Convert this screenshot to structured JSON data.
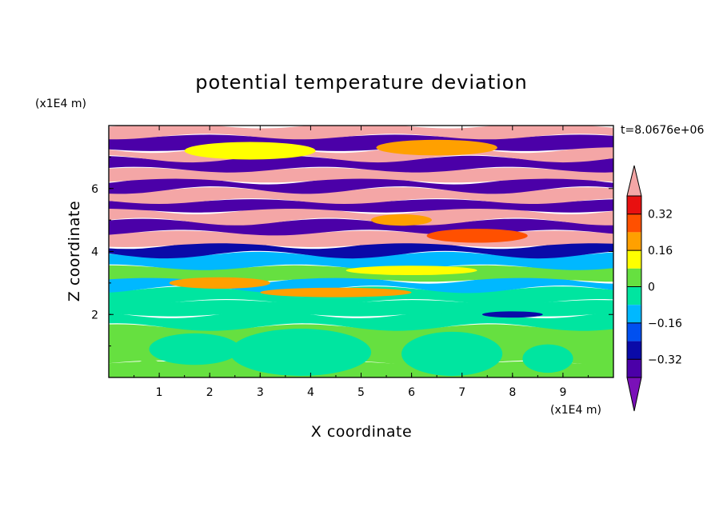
{
  "chart_data": {
    "type": "heatmap",
    "title": "potential temperature deviation",
    "xlabel": "X coordinate",
    "ylabel": "Z coordinate",
    "x_unit": "(x1E4 m)",
    "z_unit": "(x1E4 m)",
    "time_label": "t=8.0676e+06",
    "xlim": [
      0,
      10
    ],
    "ylim": [
      0,
      8
    ],
    "x_ticks": [
      "1",
      "2",
      "3",
      "4",
      "5",
      "6",
      "7",
      "8",
      "9"
    ],
    "y_ticks": [
      "2",
      "4",
      "6"
    ],
    "colorbar": {
      "extend": "both",
      "tick_labels": [
        "0.32",
        "0.16",
        "0",
        "−0.16",
        "−0.32"
      ],
      "levels": [
        -0.4,
        -0.32,
        -0.24,
        -0.16,
        -0.08,
        0,
        0.08,
        0.16,
        0.24,
        0.32,
        0.4
      ],
      "colors": [
        "#7a10b8",
        "#4b00a8",
        "#0a0aa8",
        "#0050f0",
        "#00b8ff",
        "#00e5a0",
        "#66e040",
        "#ffff00",
        "#ffa000",
        "#ff5000",
        "#e81010",
        "#f4a6a6"
      ]
    },
    "field_bands": [
      {
        "z": [
          0.0,
          0.45
        ],
        "value": 0.03
      },
      {
        "z": [
          0.45,
          1.6
        ],
        "value": 0.03
      },
      {
        "z": [
          1.6,
          2.0
        ],
        "value": -0.02
      },
      {
        "z": [
          2.0,
          2.4
        ],
        "value": -0.07
      },
      {
        "z": [
          2.4,
          2.8
        ],
        "value": -0.03
      },
      {
        "z": [
          2.8,
          3.1
        ],
        "value": -0.09
      },
      {
        "z": [
          3.1,
          3.5
        ],
        "value": 0.05
      },
      {
        "z": [
          3.5,
          3.9
        ],
        "value": -0.12
      },
      {
        "z": [
          3.9,
          4.2
        ],
        "value": -0.3
      },
      {
        "z": [
          4.2,
          4.6
        ],
        "value": 0.42
      },
      {
        "z": [
          4.6,
          4.95
        ],
        "value": -0.36
      },
      {
        "z": [
          4.95,
          5.3
        ],
        "value": 0.42
      },
      {
        "z": [
          5.3,
          5.6
        ],
        "value": -0.36
      },
      {
        "z": [
          5.6,
          5.95
        ],
        "value": 0.42
      },
      {
        "z": [
          5.95,
          6.25
        ],
        "value": -0.37
      },
      {
        "z": [
          6.25,
          6.6
        ],
        "value": 0.42
      },
      {
        "z": [
          6.6,
          6.95
        ],
        "value": -0.37
      },
      {
        "z": [
          6.95,
          7.25
        ],
        "value": 0.42
      },
      {
        "z": [
          7.25,
          7.65
        ],
        "value": -0.38
      },
      {
        "z": [
          7.65,
          8.0
        ],
        "value": 0.42
      }
    ],
    "field_patches": [
      {
        "x": 0.8,
        "z": 0.35,
        "rx": 0.25,
        "rz": 0.22,
        "value": 0.03
      },
      {
        "x": 1.7,
        "z": 0.9,
        "rx": 0.9,
        "rz": 0.5,
        "value": -0.02
      },
      {
        "x": 3.8,
        "z": 0.8,
        "rx": 1.4,
        "rz": 0.75,
        "value": -0.02
      },
      {
        "x": 6.8,
        "z": 0.75,
        "rx": 1.0,
        "rz": 0.7,
        "value": -0.02
      },
      {
        "x": 8.7,
        "z": 0.6,
        "rx": 0.5,
        "rz": 0.45,
        "value": -0.02
      },
      {
        "x": 7.3,
        "z": 4.5,
        "rx": 1.0,
        "rz": 0.22,
        "value": 0.3
      },
      {
        "x": 2.2,
        "z": 3.0,
        "rx": 1.0,
        "rz": 0.18,
        "value": 0.2
      },
      {
        "x": 6.0,
        "z": 3.4,
        "rx": 1.3,
        "rz": 0.15,
        "value": 0.12
      },
      {
        "x": 4.5,
        "z": 2.7,
        "rx": 1.5,
        "rz": 0.15,
        "value": 0.2
      },
      {
        "x": 8.0,
        "z": 2.0,
        "rx": 0.6,
        "rz": 0.1,
        "value": -0.3
      },
      {
        "x": 2.8,
        "z": 7.2,
        "rx": 1.3,
        "rz": 0.28,
        "value": 0.1
      },
      {
        "x": 6.5,
        "z": 7.3,
        "rx": 1.2,
        "rz": 0.25,
        "value": 0.2
      },
      {
        "x": 5.8,
        "z": 5.0,
        "rx": 0.6,
        "rz": 0.18,
        "value": 0.2
      }
    ]
  }
}
